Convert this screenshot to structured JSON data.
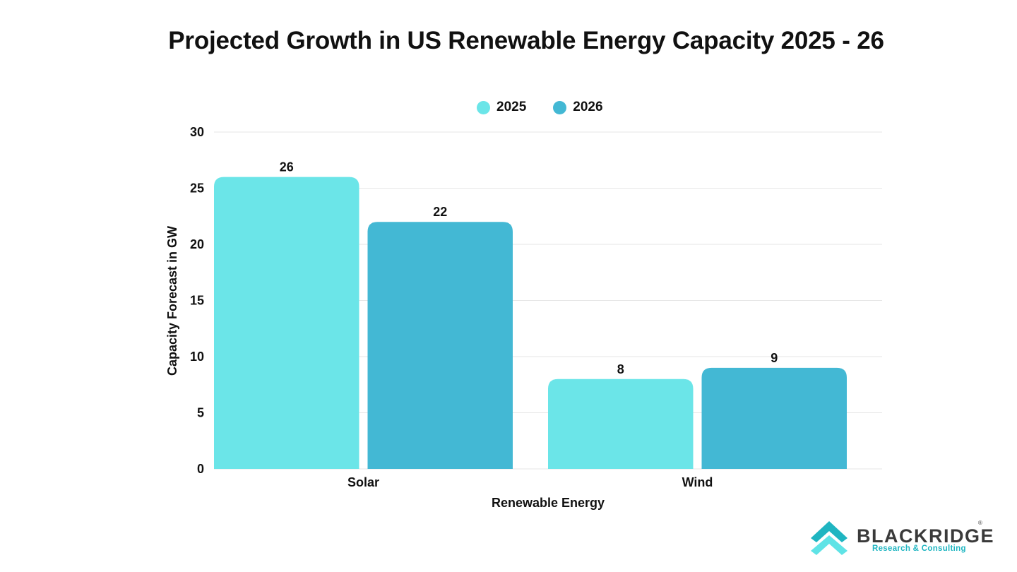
{
  "chart_data": {
    "type": "bar",
    "title": "Projected Growth in US Renewable Energy Capacity 2025 - 26",
    "xlabel": "Renewable Energy",
    "ylabel": "Capacity Forecast in GW",
    "categories": [
      "Solar",
      "Wind"
    ],
    "series": [
      {
        "name": "2025",
        "values": [
          26,
          8
        ],
        "color": "#6be5e8"
      },
      {
        "name": "2026",
        "values": [
          22,
          9
        ],
        "color": "#43b8d4"
      }
    ],
    "ylim": [
      0,
      30
    ],
    "yticks": [
      0,
      5,
      10,
      15,
      20,
      25,
      30
    ],
    "grid": true,
    "legend_position": "top-center"
  },
  "logo": {
    "name": "BLACKRIDGE",
    "subtitle": "Research & Consulting",
    "reg": "®",
    "colors": {
      "icon_dark": "#1fb5c1",
      "icon_light": "#5fe3e6",
      "text": "#3a3a3a"
    }
  }
}
